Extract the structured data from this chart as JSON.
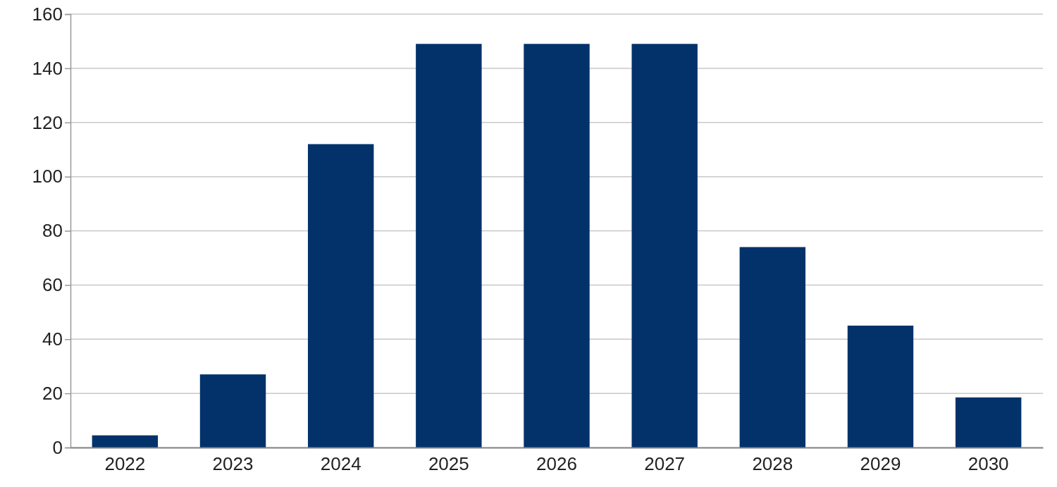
{
  "chart_data": {
    "type": "bar",
    "categories": [
      "2022",
      "2023",
      "2024",
      "2025",
      "2026",
      "2027",
      "2028",
      "2029",
      "2030"
    ],
    "values": [
      4.5,
      27,
      112,
      149,
      149,
      149,
      74,
      45,
      18.5
    ],
    "color": "#03326a",
    "ylim": [
      0,
      160
    ],
    "yticks": [
      0,
      20,
      40,
      60,
      80,
      100,
      120,
      140,
      160
    ],
    "grid": "y"
  }
}
